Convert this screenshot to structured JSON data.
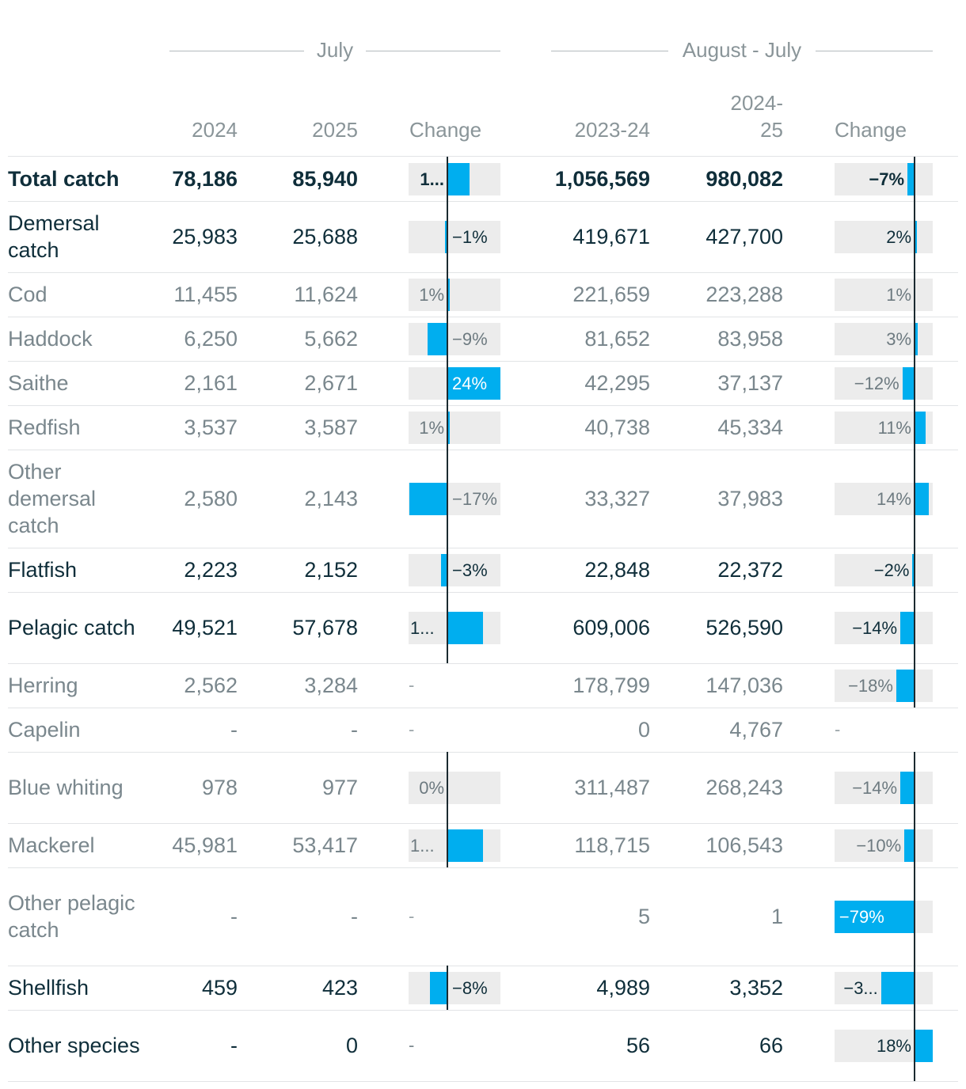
{
  "colors": {
    "bar": "#00aeef",
    "bar_bg": "#ececec",
    "main_text": "#0f2e3a",
    "sub_text": "#7a878d"
  },
  "header": {
    "group1": "July",
    "group2": "August - July",
    "cols": [
      "2024",
      "2025",
      "Change",
      "2023-24",
      "2024-\n25",
      "Change"
    ]
  },
  "chart_data": {
    "type": "table",
    "columns": [
      "",
      "2024",
      "2025",
      "Change",
      "2023-24",
      "2024-25",
      "Change"
    ],
    "rows": [
      {
        "name": "Total catch",
        "level": "main",
        "v2024": "78,186",
        "v2025": "85,940",
        "july_change": 10,
        "july_label": "1...",
        "v2324": "1,056,569",
        "v2425": "980,082",
        "aj_change": -7,
        "aj_label": "−7%"
      },
      {
        "name": "Demersal catch",
        "level": "main",
        "v2024": "25,983",
        "v2025": "25,688",
        "july_change": -1,
        "july_label": "−1%",
        "v2324": "419,671",
        "v2425": "427,700",
        "aj_change": 2,
        "aj_label": "2%"
      },
      {
        "name": "Cod",
        "level": "sub",
        "v2024": "11,455",
        "v2025": "11,624",
        "july_change": 1,
        "july_label": "1%",
        "v2324": "221,659",
        "v2425": "223,288",
        "aj_change": 1,
        "aj_label": "1%"
      },
      {
        "name": "Haddock",
        "level": "sub",
        "v2024": "6,250",
        "v2025": "5,662",
        "july_change": -9,
        "july_label": "−9%",
        "v2324": "81,652",
        "v2425": "83,958",
        "aj_change": 3,
        "aj_label": "3%"
      },
      {
        "name": "Saithe",
        "level": "sub",
        "v2024": "2,161",
        "v2025": "2,671",
        "july_change": 24,
        "july_label": "24%",
        "v2324": "42,295",
        "v2425": "37,137",
        "aj_change": -12,
        "aj_label": "−12%"
      },
      {
        "name": "Redfish",
        "level": "sub",
        "v2024": "3,537",
        "v2025": "3,587",
        "july_change": 1,
        "july_label": "1%",
        "v2324": "40,738",
        "v2425": "45,334",
        "aj_change": 11,
        "aj_label": "11%"
      },
      {
        "name": "Other demersal catch",
        "level": "sub",
        "v2024": "2,580",
        "v2025": "2,143",
        "july_change": -17,
        "july_label": "−17%",
        "v2324": "33,327",
        "v2425": "37,983",
        "aj_change": 14,
        "aj_label": "14%"
      },
      {
        "name": "Flatfish",
        "level": "main",
        "v2024": "2,223",
        "v2025": "2,152",
        "july_change": -3,
        "july_label": "−3%",
        "v2324": "22,848",
        "v2425": "22,372",
        "aj_change": -2,
        "aj_label": "−2%"
      },
      {
        "name": "Pelagic catch",
        "level": "main",
        "v2024": "49,521",
        "v2025": "57,678",
        "july_change": 16,
        "july_label": "1...",
        "v2324": "609,006",
        "v2425": "526,590",
        "aj_change": -14,
        "aj_label": "−14%"
      },
      {
        "name": "Herring",
        "level": "sub",
        "v2024": "2,562",
        "v2025": "3,284",
        "july_change": null,
        "july_label": "-",
        "v2324": "178,799",
        "v2425": "147,036",
        "aj_change": -18,
        "aj_label": "−18%"
      },
      {
        "name": "Capelin",
        "level": "sub",
        "v2024": "-",
        "v2025": "-",
        "july_change": null,
        "july_label": "-",
        "v2324": "0",
        "v2425": "4,767",
        "aj_change": null,
        "aj_label": "-"
      },
      {
        "name": "Blue whiting",
        "level": "sub",
        "v2024": "978",
        "v2025": "977",
        "july_change": 0,
        "july_label": "0%",
        "v2324": "311,487",
        "v2425": "268,243",
        "aj_change": -14,
        "aj_label": "−14%"
      },
      {
        "name": "Mackerel",
        "level": "sub",
        "v2024": "45,981",
        "v2025": "53,417",
        "july_change": 16,
        "july_label": "1...",
        "v2324": "118,715",
        "v2425": "106,543",
        "aj_change": -10,
        "aj_label": "−10%"
      },
      {
        "name": "Other pelagic catch",
        "level": "sub",
        "v2024": "-",
        "v2025": "-",
        "july_change": null,
        "july_label": "-",
        "v2324": "5",
        "v2425": "1",
        "aj_change": -79,
        "aj_label": "−79%"
      },
      {
        "name": "Shellfish",
        "level": "main",
        "v2024": "459",
        "v2025": "423",
        "july_change": -8,
        "july_label": "−8%",
        "v2324": "4,989",
        "v2425": "3,352",
        "aj_change": -33,
        "aj_label": "−3..."
      },
      {
        "name": "Other species",
        "level": "main",
        "v2024": "-",
        "v2025": "0",
        "july_change": null,
        "july_label": "-",
        "v2324": "56",
        "v2425": "66",
        "aj_change": 18,
        "aj_label": "18%"
      }
    ]
  }
}
